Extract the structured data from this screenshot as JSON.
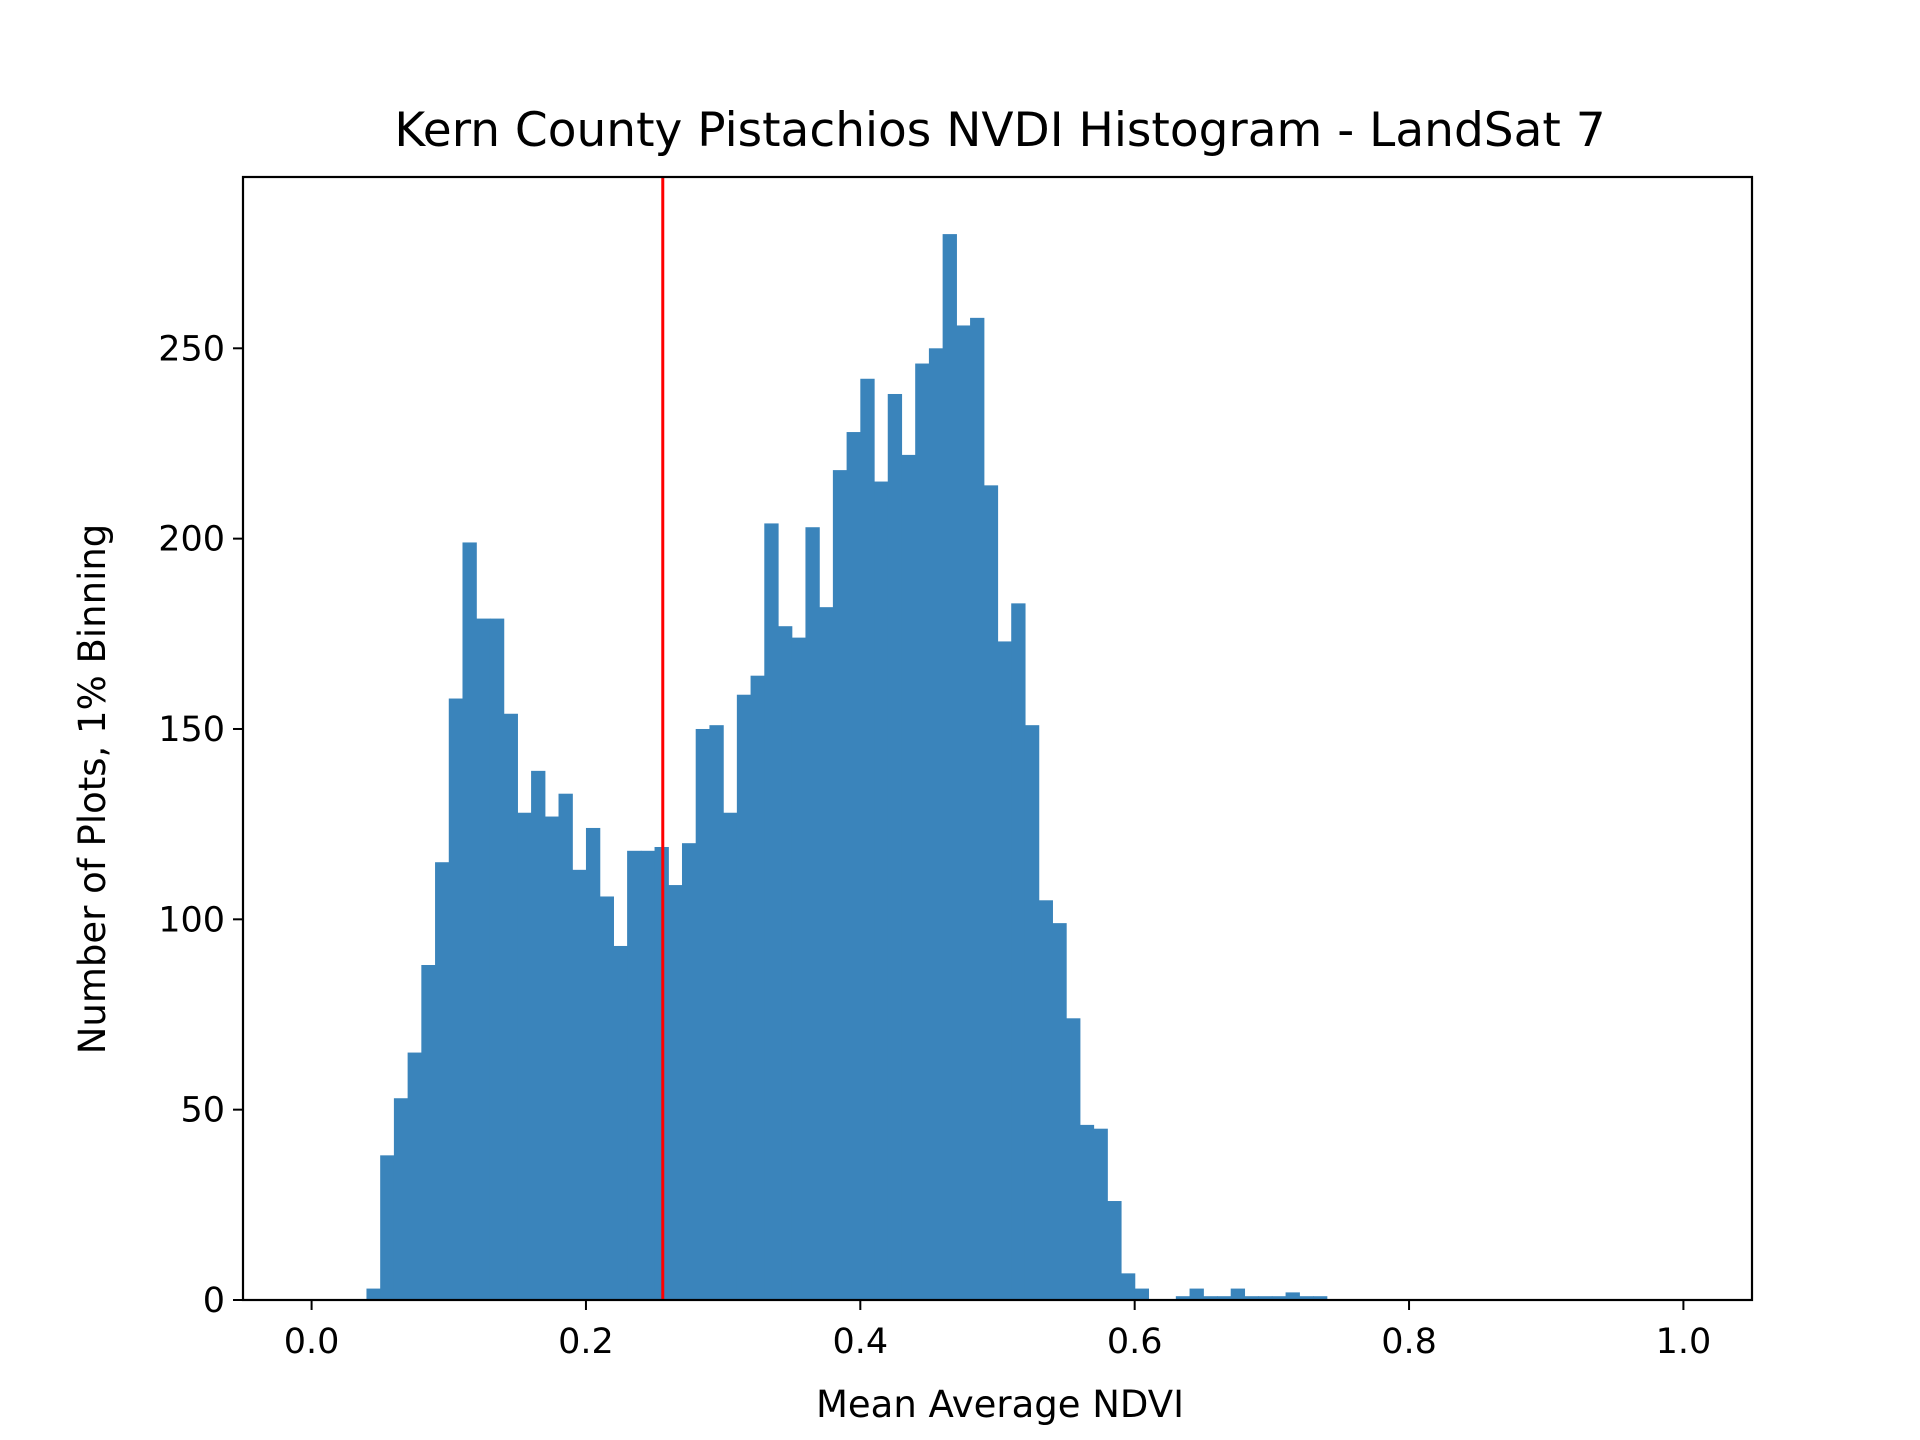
{
  "chart_data": {
    "type": "bar",
    "title": "Kern County Pistachios NVDI Histogram - LandSat 7",
    "xlabel": "Mean Average NDVI",
    "ylabel": "Number of Plots, 1% Binning",
    "xlim": [
      -0.05,
      1.05
    ],
    "ylim": [
      0,
      295
    ],
    "x_ticks": [
      {
        "value": 0.0,
        "label": "0.0"
      },
      {
        "value": 0.2,
        "label": "0.2"
      },
      {
        "value": 0.4,
        "label": "0.4"
      },
      {
        "value": 0.6,
        "label": "0.6"
      },
      {
        "value": 0.8,
        "label": "0.8"
      },
      {
        "value": 1.0,
        "label": "1.0"
      }
    ],
    "y_ticks": [
      {
        "value": 0,
        "label": "0"
      },
      {
        "value": 50,
        "label": "50"
      },
      {
        "value": 100,
        "label": "100"
      },
      {
        "value": 150,
        "label": "150"
      },
      {
        "value": 200,
        "label": "200"
      },
      {
        "value": 250,
        "label": "250"
      }
    ],
    "bin_width": 0.01,
    "bin_starts": [
      0.04,
      0.05,
      0.06,
      0.07,
      0.08,
      0.09,
      0.1,
      0.11,
      0.12,
      0.13,
      0.14,
      0.15,
      0.16,
      0.17,
      0.18,
      0.19,
      0.2,
      0.21,
      0.22,
      0.23,
      0.24,
      0.25,
      0.26,
      0.27,
      0.28,
      0.29,
      0.3,
      0.31,
      0.32,
      0.33,
      0.34,
      0.35,
      0.36,
      0.37,
      0.38,
      0.39,
      0.4,
      0.41,
      0.42,
      0.43,
      0.44,
      0.45,
      0.46,
      0.47,
      0.48,
      0.49,
      0.5,
      0.51,
      0.52,
      0.53,
      0.54,
      0.55,
      0.56,
      0.57,
      0.58,
      0.59,
      0.6,
      0.61,
      0.62,
      0.63,
      0.64,
      0.65,
      0.66,
      0.67,
      0.68,
      0.69,
      0.7,
      0.71,
      0.72,
      0.73
    ],
    "values": [
      3,
      38,
      53,
      65,
      88,
      115,
      158,
      199,
      179,
      179,
      154,
      128,
      139,
      127,
      133,
      113,
      124,
      106,
      93,
      118,
      118,
      119,
      109,
      120,
      150,
      151,
      128,
      159,
      164,
      204,
      177,
      174,
      203,
      182,
      218,
      228,
      242,
      215,
      238,
      222,
      246,
      250,
      280,
      256,
      258,
      214,
      173,
      183,
      151,
      105,
      99,
      74,
      46,
      45,
      26,
      7,
      3,
      0,
      0,
      1,
      3,
      1,
      1,
      3,
      1,
      1,
      1,
      2,
      1,
      1
    ],
    "bar_color": "#3a84bb",
    "vline": {
      "x": 0.256,
      "color": "#ff0000"
    },
    "grid": false,
    "legend": "none"
  }
}
